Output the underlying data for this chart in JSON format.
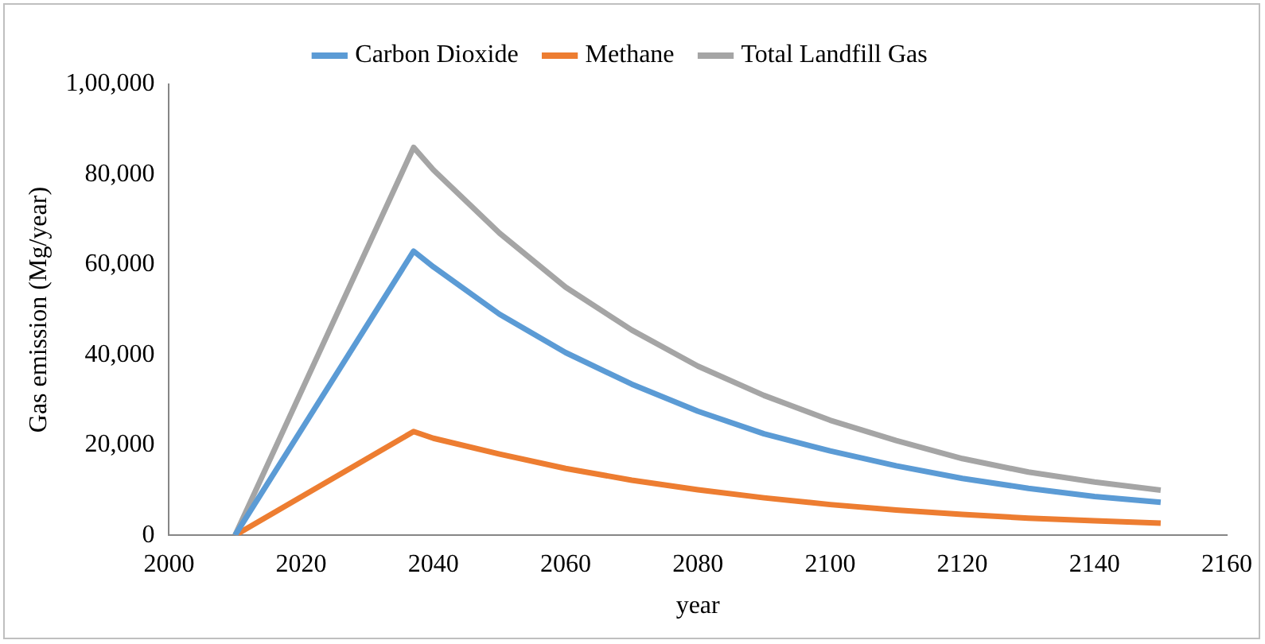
{
  "chart_data": {
    "type": "line",
    "xlabel": "year",
    "ylabel": "Gas emission (Mg/year)",
    "x": [
      2010,
      2037,
      2040,
      2050,
      2060,
      2070,
      2080,
      2090,
      2100,
      2110,
      2120,
      2130,
      2140,
      2150
    ],
    "series": [
      {
        "name": "Carbon Dioxide",
        "color": "#5b9bd5",
        "values": [
          0,
          63000,
          59500,
          49000,
          40500,
          33500,
          27500,
          22500,
          18700,
          15400,
          12600,
          10400,
          8600,
          7300
        ]
      },
      {
        "name": "Methane",
        "color": "#ed7d31",
        "values": [
          0,
          23000,
          21500,
          18000,
          14800,
          12200,
          10100,
          8300,
          6800,
          5600,
          4600,
          3800,
          3200,
          2700
        ]
      },
      {
        "name": "Total Landfill Gas",
        "color": "#a5a5a5",
        "values": [
          0,
          86000,
          81000,
          67000,
          55000,
          45500,
          37500,
          31000,
          25500,
          21000,
          17000,
          14000,
          11800,
          10000
        ]
      }
    ],
    "xlim": [
      2000,
      2160
    ],
    "xticks": [
      2000,
      2020,
      2040,
      2060,
      2080,
      2100,
      2120,
      2140,
      2160
    ],
    "ylim": [
      0,
      100000
    ],
    "yticks": [
      {
        "value": 0,
        "label": "0"
      },
      {
        "value": 20000,
        "label": "20,000"
      },
      {
        "value": 40000,
        "label": "40,000"
      },
      {
        "value": 60000,
        "label": "60,000"
      },
      {
        "value": 80000,
        "label": "80,000"
      },
      {
        "value": 100000,
        "label": "1,00,000"
      }
    ],
    "grid": false,
    "legend": "top",
    "marker": "none",
    "line_style": "solid"
  }
}
